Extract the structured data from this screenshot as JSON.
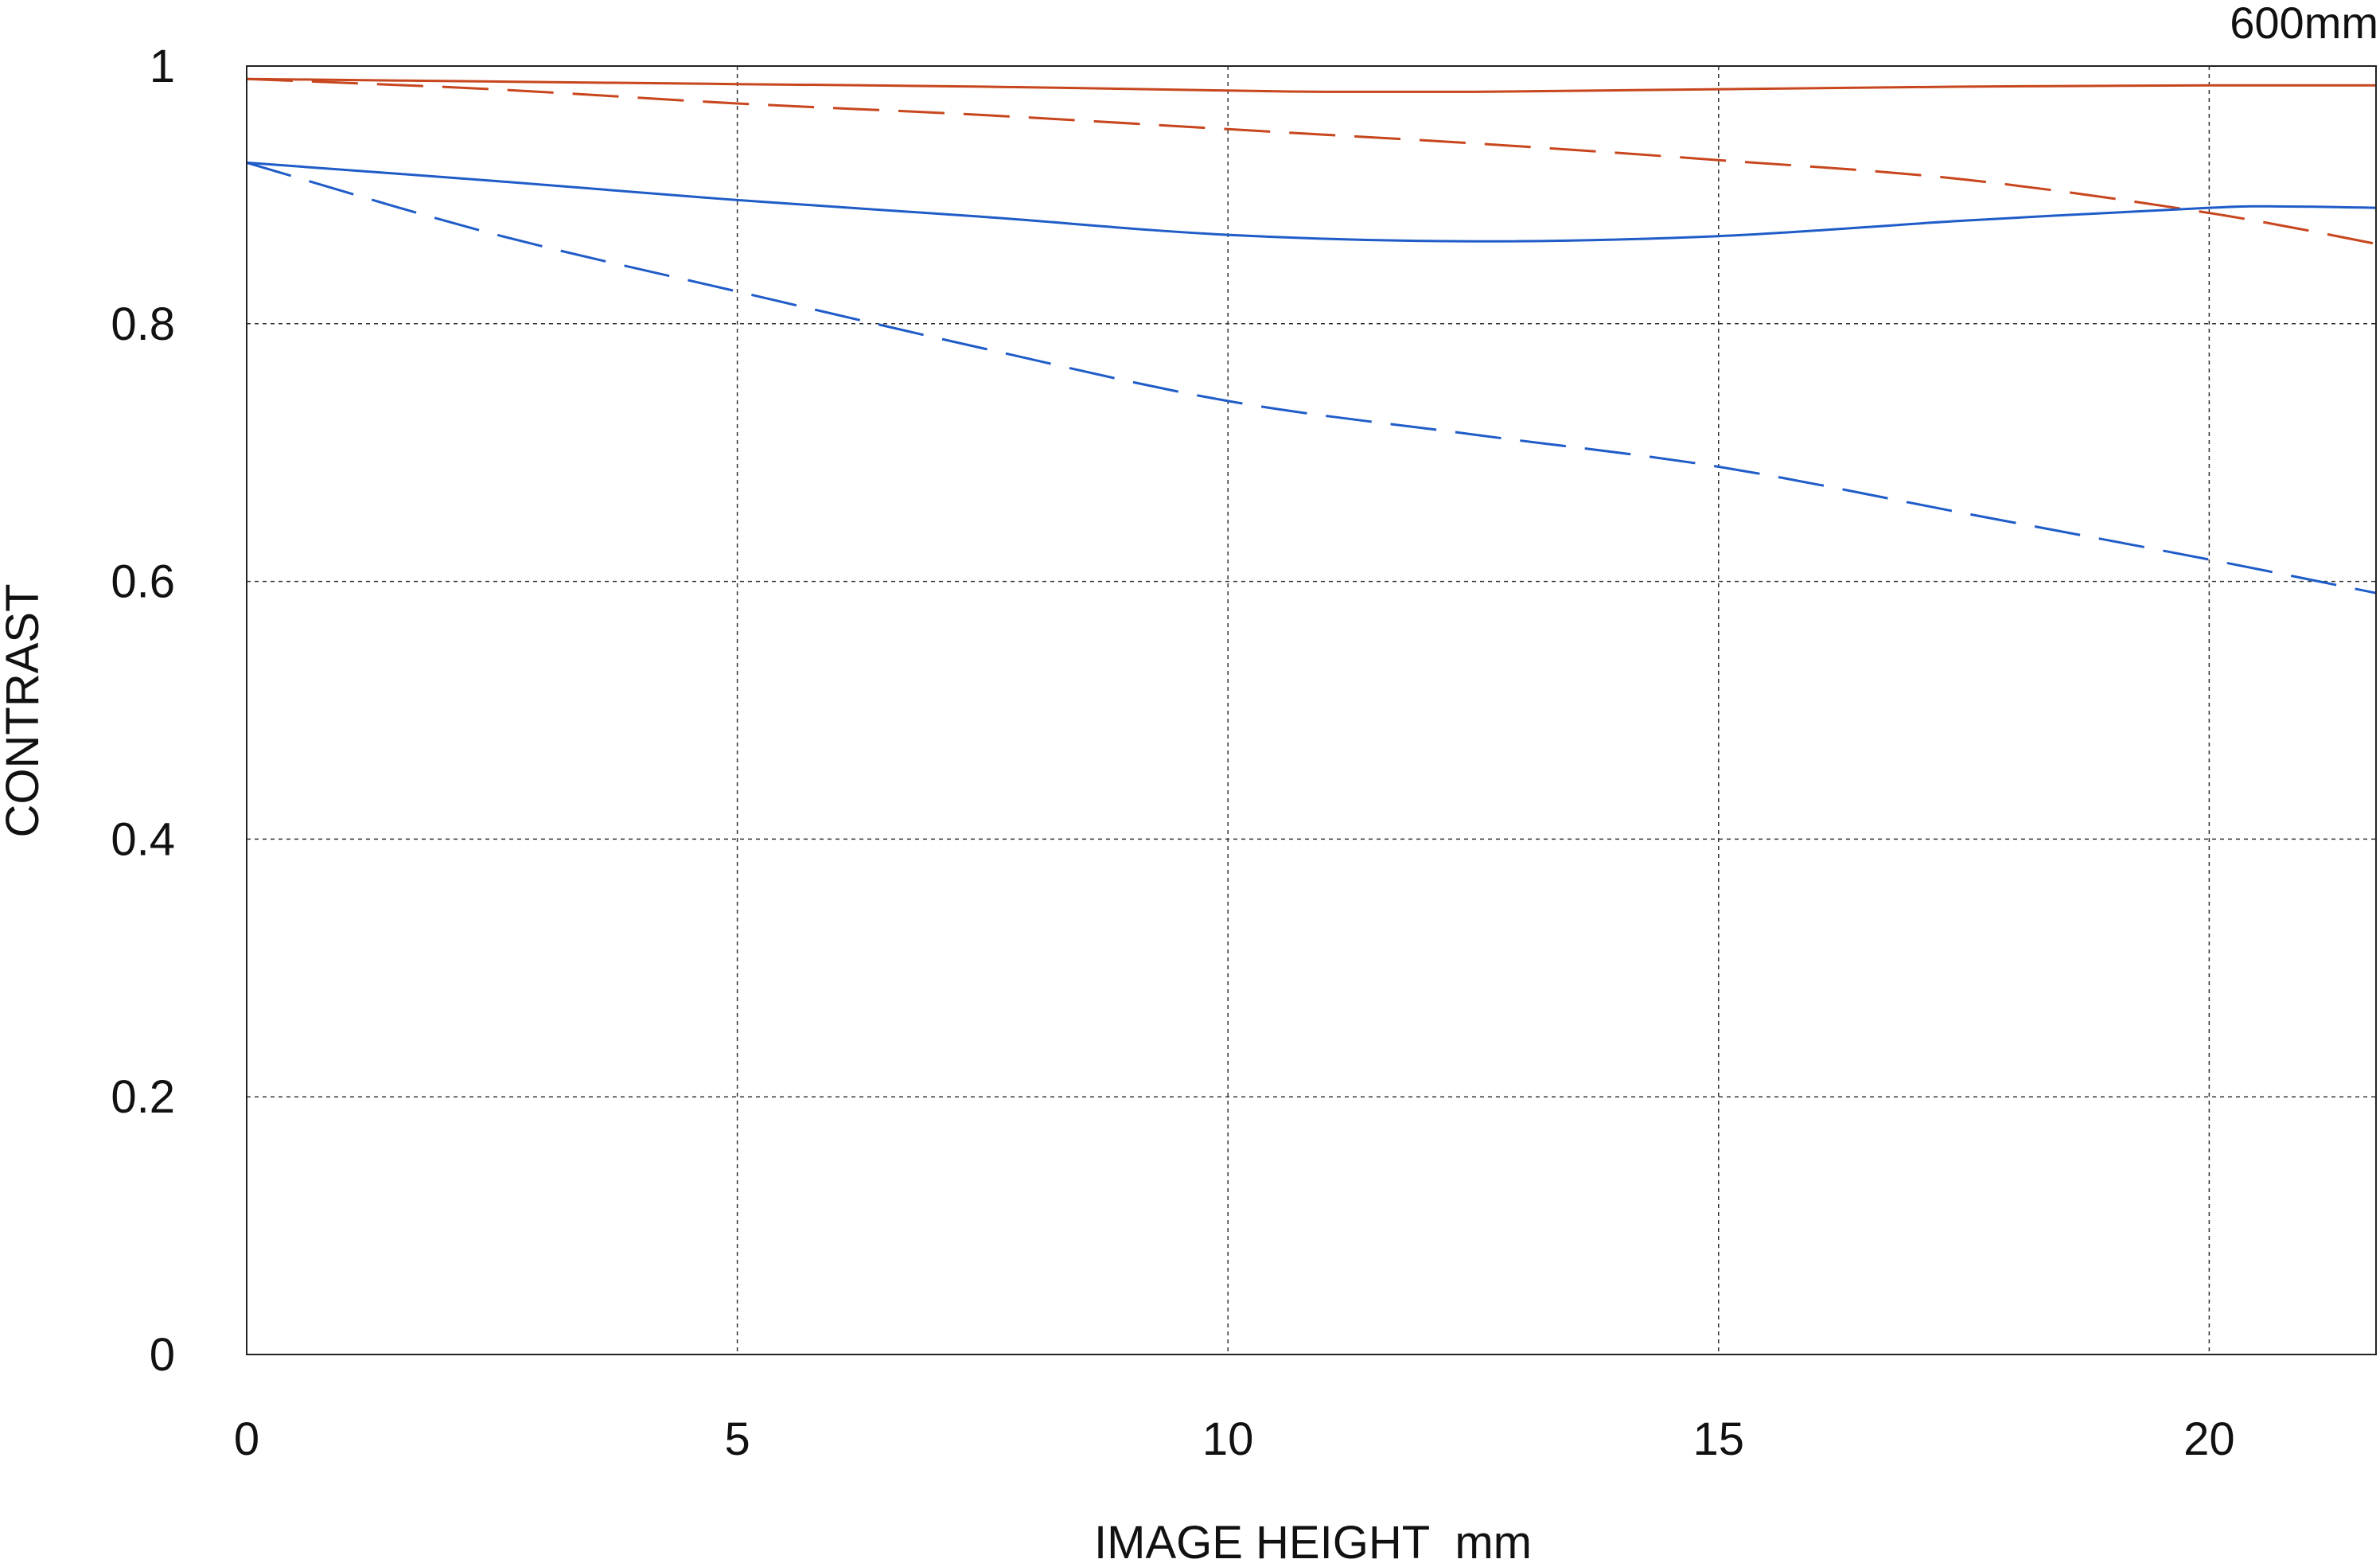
{
  "chart_data": {
    "type": "line",
    "title": "600mm",
    "xlabel": "IMAGE HEIGHT  mm",
    "ylabel": "CONTRAST",
    "xlim": [
      0,
      21.7
    ],
    "ylim": [
      0,
      1
    ],
    "x_ticks": [
      0,
      5,
      10,
      15,
      20
    ],
    "y_ticks": [
      0,
      0.2,
      0.4,
      0.6,
      0.8,
      1
    ],
    "x_tick_labels": [
      "0",
      "5",
      "10",
      "15",
      "20"
    ],
    "y_tick_labels": [
      "0",
      "0.2",
      "0.4",
      "0.6",
      "0.8",
      "1"
    ],
    "grid": true,
    "series": [
      {
        "color": "#c8461e",
        "style": "solid",
        "x": [
          0,
          2.5,
          5,
          7.5,
          10,
          11,
          12.5,
          15,
          17.5,
          20,
          21.7
        ],
        "y": [
          0.99,
          0.988,
          0.986,
          0.984,
          0.981,
          0.98,
          0.98,
          0.982,
          0.984,
          0.985,
          0.985
        ]
      },
      {
        "color": "#c8461e",
        "style": "dashed",
        "x": [
          0,
          2.5,
          5,
          7.5,
          10,
          12.5,
          15,
          17.5,
          20,
          21.7
        ],
        "y": [
          0.99,
          0.982,
          0.971,
          0.962,
          0.951,
          0.94,
          0.927,
          0.912,
          0.886,
          0.862
        ]
      },
      {
        "color": "#1f5cc8",
        "style": "solid",
        "x": [
          0,
          2.5,
          5,
          7.5,
          10,
          12.5,
          15,
          17.5,
          20,
          20.8,
          21.7
        ],
        "y": [
          0.925,
          0.911,
          0.896,
          0.883,
          0.869,
          0.864,
          0.868,
          0.88,
          0.89,
          0.891,
          0.89
        ]
      },
      {
        "color": "#1f5cc8",
        "style": "dashed",
        "x": [
          0,
          2.5,
          5,
          7.5,
          10,
          12.5,
          15,
          17.5,
          20,
          21.7
        ],
        "y": [
          0.925,
          0.87,
          0.825,
          0.781,
          0.74,
          0.714,
          0.689,
          0.653,
          0.617,
          0.591
        ]
      }
    ]
  }
}
